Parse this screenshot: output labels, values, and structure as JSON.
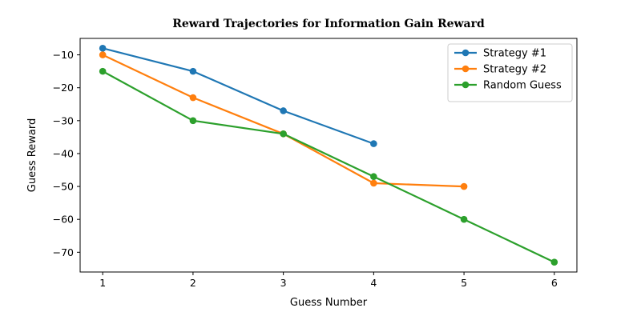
{
  "chart_data": {
    "type": "line",
    "title": "Reward Trajectories for Information Gain Reward",
    "xlabel": "Guess Number",
    "ylabel": "Guess Reward",
    "xlim": [
      0.75,
      6.25
    ],
    "ylim": [
      -76,
      -5
    ],
    "xticks": [
      1,
      2,
      3,
      4,
      5,
      6
    ],
    "yticks": [
      -10,
      -20,
      -30,
      -40,
      -50,
      -60,
      -70
    ],
    "grid": false,
    "legend_position": "top-right",
    "series": [
      {
        "name": "Strategy #1",
        "color": "#1f77b4",
        "x": [
          1,
          2,
          3,
          4
        ],
        "y": [
          -8,
          -15,
          -27,
          -37
        ]
      },
      {
        "name": "Strategy #2",
        "color": "#ff7f0e",
        "x": [
          1,
          2,
          3,
          4,
          5
        ],
        "y": [
          -10,
          -23,
          -34,
          -49,
          -50
        ]
      },
      {
        "name": "Random Guess",
        "color": "#2ca02c",
        "x": [
          1,
          2,
          3,
          4,
          5,
          6
        ],
        "y": [
          -15,
          -30,
          -34,
          -47,
          -60,
          -73
        ]
      }
    ]
  }
}
